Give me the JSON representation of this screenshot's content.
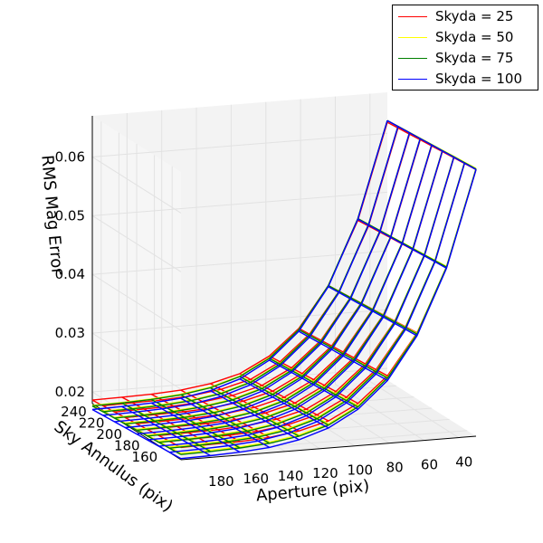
{
  "chart_data": {
    "type": "surface3d-wireframe",
    "title": "",
    "xlabel": "Aperture (pix)",
    "ylabel": "Sky Annulus (pix)",
    "zlabel": "RMS Mag Error",
    "x_ticks": [
      "40",
      "60",
      "80",
      "100",
      "120",
      "140",
      "160",
      "180"
    ],
    "y_ticks": [
      "160",
      "180",
      "200",
      "220",
      "240"
    ],
    "z_ticks": [
      "0.02",
      "0.03",
      "0.04",
      "0.05",
      "0.06"
    ],
    "xlim": [
      30,
      200
    ],
    "ylim": [
      150,
      250
    ],
    "zlim": [
      0.018,
      0.067
    ],
    "aperture": [
      30,
      47,
      64,
      81,
      98,
      115,
      132,
      149,
      166,
      183,
      200
    ],
    "sky_annulus": [
      150,
      163,
      175,
      188,
      200,
      213,
      225,
      238,
      250
    ],
    "series": [
      {
        "name": "Skyda = 25",
        "color": "#ff0000",
        "z_base": [
          0.0634,
          0.0471,
          0.0364,
          0.0295,
          0.0252,
          0.0226,
          0.0213,
          0.0206,
          0.0203,
          0.0202,
          0.0201
        ],
        "sky_slope": -0.0015
      },
      {
        "name": "Skyda = 50",
        "color": "#ffff00",
        "z_base": [
          0.0636,
          0.0473,
          0.0363,
          0.0292,
          0.0248,
          0.0221,
          0.0206,
          0.0198,
          0.0194,
          0.0192,
          0.0191
        ],
        "sky_slope": -0.0014
      },
      {
        "name": "Skyda = 75",
        "color": "#008000",
        "z_base": [
          0.0635,
          0.0472,
          0.0362,
          0.0291,
          0.0246,
          0.0219,
          0.0204,
          0.0196,
          0.0192,
          0.019,
          0.0189
        ],
        "sky_slope": -0.0013
      },
      {
        "name": "Skyda = 100",
        "color": "#0000ff",
        "z_base": [
          0.0634,
          0.047,
          0.0359,
          0.0287,
          0.0242,
          0.0214,
          0.0198,
          0.0189,
          0.0185,
          0.0183,
          0.0182
        ],
        "sky_slope": -0.0012
      }
    ],
    "legend_position": "top-right",
    "grid": true
  }
}
